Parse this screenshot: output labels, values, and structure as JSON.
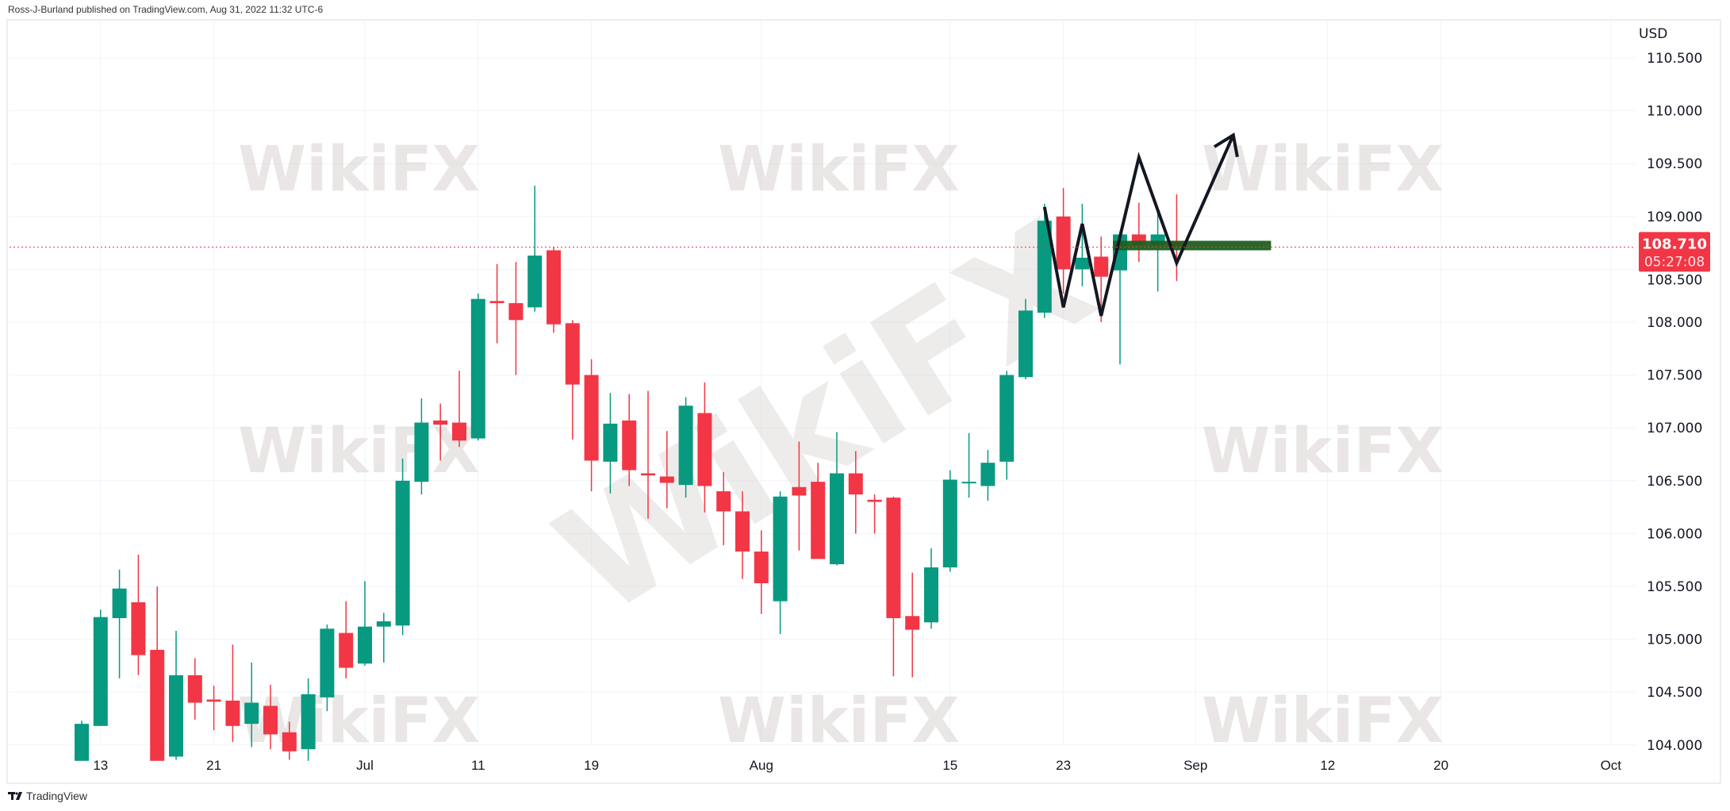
{
  "header": {
    "text": "Ross-J-Burland published on TradingView.com, Aug 31, 2022 11:32 UTC-6"
  },
  "footer": {
    "logo_text": "TradingView",
    "icon": "tradingview-logo-icon"
  },
  "watermark": {
    "text": "WikiFX",
    "icon": "wikifx-eagle-logo-icon"
  },
  "colors": {
    "up": "#089981",
    "down": "#f23645",
    "price_line": "#f23645",
    "drawing": "#131722",
    "zone": "#1f5f1f",
    "grid": "#f0f3fa"
  },
  "chart_data": {
    "type": "candlestick",
    "currency_label": "USD",
    "ylim": [
      103.85,
      110.75
    ],
    "grid": true,
    "y_ticks": [
      "104.000",
      "104.500",
      "105.000",
      "105.500",
      "106.000",
      "106.500",
      "107.000",
      "107.500",
      "108.000",
      "108.500",
      "109.000",
      "109.500",
      "110.000",
      "110.500"
    ],
    "x_ticks": [
      {
        "label": "13",
        "date": "2022-06-13"
      },
      {
        "label": "21",
        "date": "2022-06-21"
      },
      {
        "label": "Jul",
        "date": "2022-07-01"
      },
      {
        "label": "11",
        "date": "2022-07-11"
      },
      {
        "label": "19",
        "date": "2022-07-19"
      },
      {
        "label": "Aug",
        "date": "2022-08-01"
      },
      {
        "label": "15",
        "date": "2022-08-15"
      },
      {
        "label": "23",
        "date": "2022-08-23"
      },
      {
        "label": "Sep",
        "date": "2022-09-01"
      },
      {
        "label": "12",
        "date": "2022-09-12"
      },
      {
        "label": "20",
        "date": "2022-09-20"
      },
      {
        "label": "Oct",
        "date": "2022-10-03"
      }
    ],
    "last_price": {
      "value": 108.71,
      "label": "108.710",
      "countdown": "05:27:08"
    },
    "candle_fields": [
      "date",
      "open",
      "high",
      "low",
      "close"
    ],
    "candles": [
      [
        "2022-06-10",
        103.85,
        104.23,
        103.85,
        104.2
      ],
      [
        "2022-06-13",
        104.18,
        105.28,
        104.18,
        105.21
      ],
      [
        "2022-06-14",
        105.2,
        105.66,
        104.63,
        105.48
      ],
      [
        "2022-06-15",
        105.35,
        105.8,
        104.66,
        104.85
      ],
      [
        "2022-06-16",
        104.9,
        105.5,
        103.85,
        103.85
      ],
      [
        "2022-06-17",
        103.89,
        105.08,
        103.86,
        104.66
      ],
      [
        "2022-06-20",
        104.66,
        104.82,
        104.24,
        104.4
      ],
      [
        "2022-06-21",
        104.43,
        104.56,
        104.14,
        104.41
      ],
      [
        "2022-06-22",
        104.42,
        104.95,
        104.03,
        104.18
      ],
      [
        "2022-06-23",
        104.2,
        104.78,
        103.98,
        104.4
      ],
      [
        "2022-06-24",
        104.37,
        104.57,
        103.96,
        104.1
      ],
      [
        "2022-06-27",
        104.12,
        104.22,
        103.86,
        103.94
      ],
      [
        "2022-06-28",
        103.96,
        104.63,
        103.85,
        104.48
      ],
      [
        "2022-06-29",
        104.45,
        105.14,
        104.32,
        105.1
      ],
      [
        "2022-06-30",
        105.06,
        105.36,
        104.63,
        104.73
      ],
      [
        "2022-07-01",
        104.77,
        105.55,
        104.75,
        105.12
      ],
      [
        "2022-07-04",
        105.12,
        105.25,
        104.78,
        105.17
      ],
      [
        "2022-07-05",
        105.13,
        106.71,
        105.04,
        106.5
      ],
      [
        "2022-07-06",
        106.49,
        107.28,
        106.37,
        107.05
      ],
      [
        "2022-07-07",
        107.07,
        107.23,
        106.69,
        107.03
      ],
      [
        "2022-07-08",
        107.05,
        107.54,
        106.82,
        106.88
      ],
      [
        "2022-07-11",
        106.9,
        108.27,
        106.88,
        108.22
      ],
      [
        "2022-07-12",
        108.2,
        108.55,
        107.8,
        108.18
      ],
      [
        "2022-07-13",
        108.18,
        108.57,
        107.5,
        108.02
      ],
      [
        "2022-07-14",
        108.14,
        109.29,
        108.1,
        108.63
      ],
      [
        "2022-07-15",
        108.68,
        108.71,
        107.9,
        107.98
      ],
      [
        "2022-07-18",
        107.99,
        108.02,
        106.89,
        107.41
      ],
      [
        "2022-07-19",
        107.5,
        107.65,
        106.4,
        106.69
      ],
      [
        "2022-07-20",
        106.68,
        107.33,
        106.38,
        107.04
      ],
      [
        "2022-07-21",
        107.07,
        107.32,
        106.45,
        106.6
      ],
      [
        "2022-07-22",
        106.57,
        107.35,
        106.14,
        106.55
      ],
      [
        "2022-07-25",
        106.54,
        106.97,
        106.24,
        106.48
      ],
      [
        "2022-07-26",
        106.46,
        107.29,
        106.34,
        107.21
      ],
      [
        "2022-07-27",
        107.14,
        107.43,
        106.2,
        106.45
      ],
      [
        "2022-07-28",
        106.4,
        106.58,
        105.89,
        106.21
      ],
      [
        "2022-07-29",
        106.21,
        106.4,
        105.57,
        105.83
      ],
      [
        "2022-08-01",
        105.83,
        106.03,
        105.24,
        105.53
      ],
      [
        "2022-08-02",
        105.36,
        106.4,
        105.05,
        106.35
      ],
      [
        "2022-08-03",
        106.44,
        106.87,
        105.84,
        106.36
      ],
      [
        "2022-08-04",
        106.49,
        106.67,
        105.76,
        105.76
      ],
      [
        "2022-08-05",
        105.71,
        106.96,
        105.7,
        106.57
      ],
      [
        "2022-08-08",
        106.57,
        106.78,
        106.0,
        106.37
      ],
      [
        "2022-08-09",
        106.32,
        106.37,
        106.0,
        106.3
      ],
      [
        "2022-08-10",
        106.34,
        106.35,
        104.65,
        105.2
      ],
      [
        "2022-08-11",
        105.22,
        105.63,
        104.64,
        105.09
      ],
      [
        "2022-08-12",
        105.16,
        105.86,
        105.1,
        105.68
      ],
      [
        "2022-08-15",
        105.68,
        106.6,
        105.64,
        106.51
      ],
      [
        "2022-08-16",
        106.48,
        106.95,
        106.34,
        106.49
      ],
      [
        "2022-08-17",
        106.45,
        106.79,
        106.31,
        106.67
      ],
      [
        "2022-08-18",
        106.68,
        107.54,
        106.51,
        107.5
      ],
      [
        "2022-08-19",
        107.48,
        108.22,
        107.46,
        108.11
      ],
      [
        "2022-08-22",
        108.09,
        109.12,
        108.04,
        108.96
      ],
      [
        "2022-08-23",
        109.0,
        109.27,
        108.27,
        108.5
      ],
      [
        "2022-08-24",
        108.5,
        109.12,
        108.34,
        108.61
      ],
      [
        "2022-08-25",
        108.62,
        108.81,
        108.0,
        108.43
      ],
      [
        "2022-08-26",
        108.49,
        108.86,
        107.6,
        108.83
      ],
      [
        "2022-08-29",
        108.83,
        109.13,
        108.57,
        108.73
      ],
      [
        "2022-08-30",
        108.73,
        109.06,
        108.29,
        108.83
      ],
      [
        "2022-08-31",
        108.77,
        109.21,
        108.39,
        108.71
      ]
    ],
    "drawings": {
      "zigzag_arrow": [
        [
          "2022-08-22",
          109.09
        ],
        [
          "2022-08-23",
          108.14
        ],
        [
          "2022-08-24",
          108.93
        ],
        [
          "2022-08-25",
          108.06
        ],
        [
          "2022-08-29",
          109.56
        ],
        [
          "2022-08-31",
          108.56
        ],
        [
          "2022-09-05",
          109.77
        ]
      ],
      "zone": {
        "start": "2022-08-26",
        "end": "2022-09-07",
        "top": 108.77,
        "bottom": 108.68
      }
    }
  }
}
